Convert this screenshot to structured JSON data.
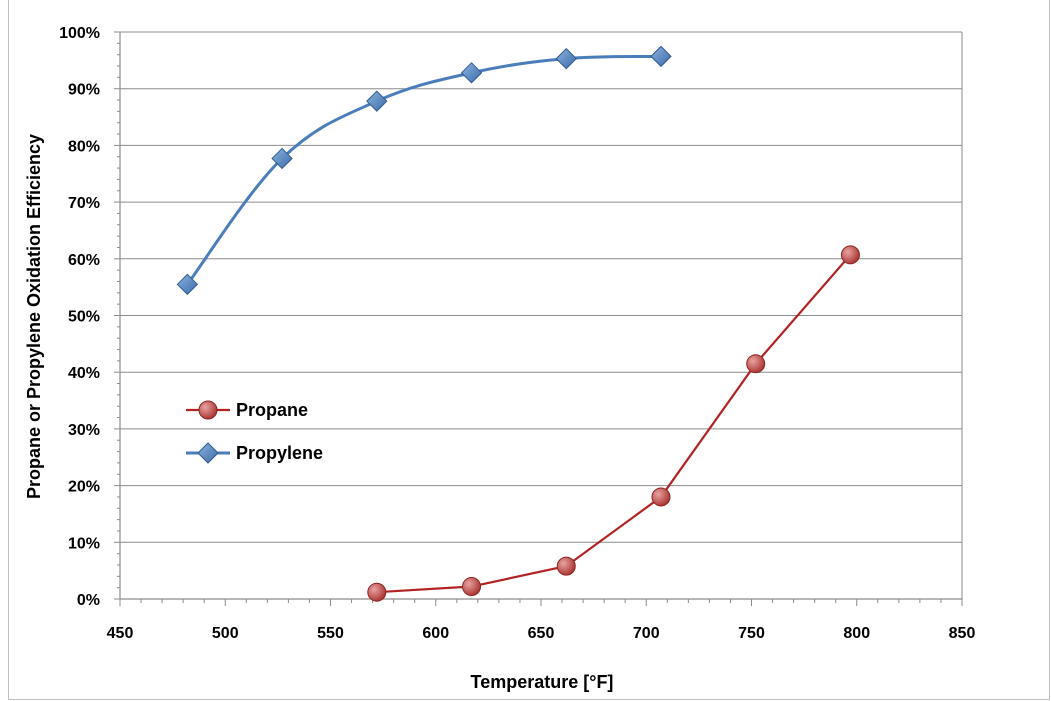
{
  "chart_data": {
    "type": "line",
    "xlabel": "Temperature [°F]",
    "ylabel": "Propane or Propylene Oxidation Efficiency",
    "xlim": [
      450,
      850
    ],
    "ylim": [
      0,
      100
    ],
    "x_ticks": [
      450,
      500,
      550,
      600,
      650,
      700,
      750,
      800,
      850
    ],
    "y_ticks": [
      0,
      10,
      20,
      30,
      40,
      50,
      60,
      70,
      80,
      90,
      100
    ],
    "y_tick_labels": [
      "0%",
      "10%",
      "20%",
      "30%",
      "40%",
      "50%",
      "60%",
      "70%",
      "80%",
      "90%",
      "100%"
    ],
    "grid": "horizontal",
    "legend_placement": "middle-left",
    "series": [
      {
        "name": "Propane",
        "marker": "circle",
        "color": "#c0504d",
        "line_color": "#b22222",
        "x": [
          572,
          617,
          662,
          707,
          752,
          797
        ],
        "y": [
          1.2,
          2.2,
          5.8,
          18.0,
          41.5,
          60.7
        ]
      },
      {
        "name": "Propylene",
        "marker": "diamond",
        "color": "#4f81bd",
        "line_color": "#4a7ebb",
        "x": [
          482,
          527,
          572,
          617,
          662,
          707
        ],
        "y": [
          55.5,
          77.7,
          87.8,
          92.8,
          95.3,
          95.7
        ]
      }
    ]
  }
}
